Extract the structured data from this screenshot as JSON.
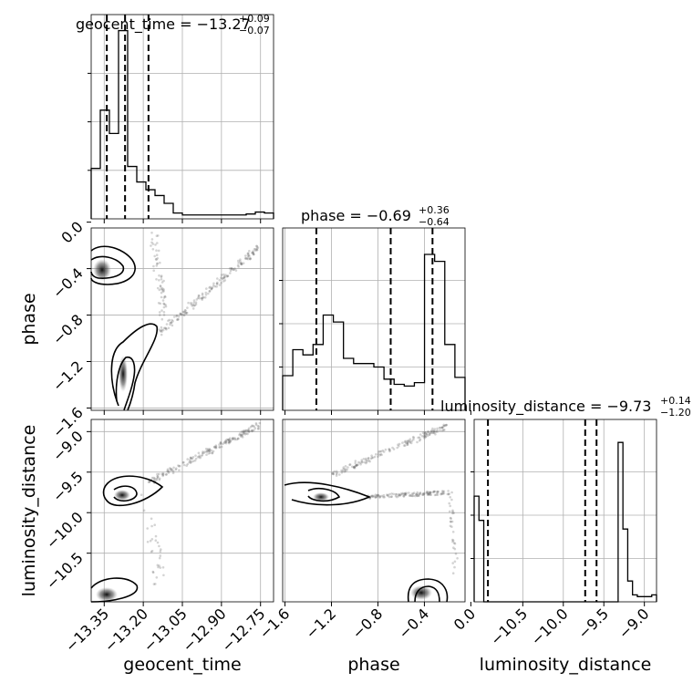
{
  "chart_data": {
    "type": "corner",
    "parameters": [
      "geocent_time",
      "phase",
      "luminosity_distance"
    ],
    "titles": [
      {
        "param": "geocent_time",
        "text": "geocent_time = −13.27",
        "sup": "+0.09",
        "sub": "−0.07"
      },
      {
        "param": "phase",
        "text": "phase = −0.69",
        "sup": "+0.36",
        "sub": "−0.64"
      },
      {
        "param": "luminosity_distance",
        "text": "luminosity_distance = −9.73",
        "sup": "+0.14",
        "sub": "−1.20"
      }
    ],
    "axis_labels": {
      "geocent_time": "geocent_time",
      "phase": "phase",
      "luminosity_distance": "luminosity_distance"
    },
    "ranges": {
      "geocent_time": [
        -13.4,
        -12.7
      ],
      "phase": [
        -1.62,
        -0.05
      ],
      "luminosity_distance": [
        -11.1,
        -8.85
      ]
    },
    "ticks": {
      "geocent_time": {
        "values": [
          -13.35,
          -13.2,
          -13.05,
          -12.9,
          -12.75
        ],
        "labels": [
          "−13.35",
          "−13.20",
          "−13.05",
          "−12.90",
          "−12.75"
        ]
      },
      "phase_x": {
        "values": [
          -1.6,
          -1.2,
          -0.8,
          -0.4,
          0.0
        ],
        "labels": [
          "−1.6",
          "−1.2",
          "−0.8",
          "−0.4",
          "0.0"
        ]
      },
      "phase_y": {
        "values": [
          0.0,
          -0.4,
          -0.8,
          -1.2,
          -1.6
        ],
        "labels": [
          "0.0",
          "−0.4",
          "−0.8",
          "−1.2",
          "−1.6"
        ]
      },
      "luminosity_distance_x": {
        "values": [
          -10.5,
          -10.0,
          -9.5,
          -9.0
        ],
        "labels": [
          "−10.5",
          "−10.0",
          "−9.5",
          "−9.0"
        ]
      },
      "luminosity_distance_y": {
        "values": [
          -9.0,
          -9.5,
          -10.0,
          -10.5
        ],
        "labels": [
          "−9.0",
          "−9.5",
          "−10.0",
          "−10.5"
        ]
      }
    },
    "quantiles": {
      "geocent_time": [
        -13.34,
        -13.27,
        -13.18
      ],
      "phase": [
        -1.33,
        -0.69,
        -0.33
      ],
      "luminosity_distance": [
        -10.93,
        -9.73,
        -9.59
      ]
    },
    "histograms": {
      "geocent_time": [
        0.26,
        0.56,
        0.44,
        0.97,
        0.27,
        0.19,
        0.15,
        0.12,
        0.08,
        0.03,
        0.02,
        0.02,
        0.02,
        0.02,
        0.02,
        0.02,
        0.02,
        0.025,
        0.035,
        0.03
      ],
      "phase": [
        0.2,
        0.35,
        0.32,
        0.38,
        0.55,
        0.51,
        0.3,
        0.27,
        0.27,
        0.25,
        0.18,
        0.15,
        0.14,
        0.16,
        0.9,
        0.86,
        0.38,
        0.19
      ],
      "luminosity_distance": [
        0.61,
        0.47,
        0.0,
        0.0,
        0.0,
        0.0,
        0.0,
        0.0,
        0.0,
        0.0,
        0.0,
        0.0,
        0.0,
        0.0,
        0.0,
        0.0,
        0.0,
        0.0,
        0.0,
        0.0,
        0.0,
        0.0,
        0.0,
        0.0,
        0.0,
        0.0,
        0.0,
        0.0,
        0.0,
        0.0,
        0.92,
        0.42,
        0.12,
        0.04,
        0.03,
        0.03,
        0.03,
        0.04
      ]
    },
    "grid": true,
    "legend": "none"
  }
}
